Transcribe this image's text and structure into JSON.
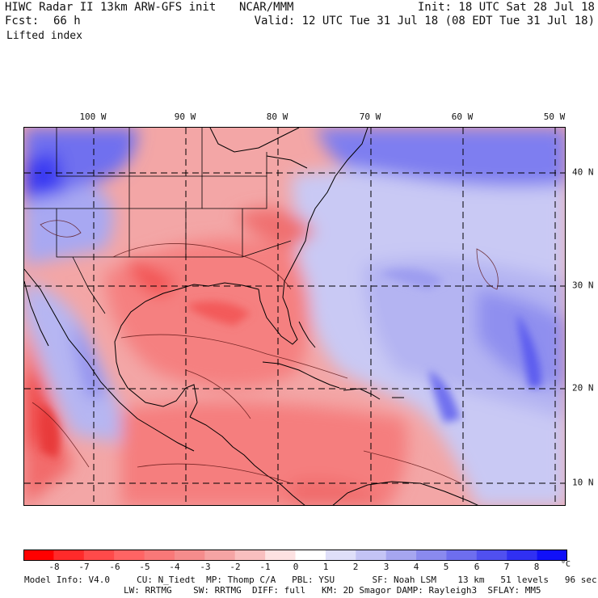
{
  "header": {
    "title": "HIWC Radar II 13km ARW-GFS init",
    "center": "NCAR/MMM",
    "init": "Init: 18 UTC Sat 28 Jul 18",
    "fcst_label": "Fcst:",
    "fcst_value": "66 h",
    "valid": "Valid: 12 UTC Tue 31 Jul 18 (08 EDT Tue 31 Jul 18)",
    "field": "Lifted index"
  },
  "longitude_labels": [
    "100 W",
    "90 W",
    "80 W",
    "70 W",
    "60 W",
    "50 W"
  ],
  "latitude_labels": [
    "40 N",
    "30 N",
    "20 N",
    "10 N"
  ],
  "colorbar": {
    "ticks": [
      "-8",
      "-7",
      "-6",
      "-5",
      "-4",
      "-3",
      "-2",
      "-1",
      "0",
      "1",
      "2",
      "3",
      "4",
      "5",
      "6",
      "7",
      "8"
    ],
    "unit": "°C",
    "colors": [
      "#ff0000",
      "#ff2a2a",
      "#ff4a4a",
      "#ff6464",
      "#f97878",
      "#f58c8c",
      "#f5a4a4",
      "#f9bfbf",
      "#fde2e2",
      "#ffffff",
      "#dfdff9",
      "#c4c4f5",
      "#a6a6f0",
      "#8a8aef",
      "#6e6eef",
      "#5050f0",
      "#3030f2",
      "#1010f8"
    ]
  },
  "footer": {
    "line1": "Model Info: V4.0     CU: N_Tiedt  MP: Thomp C/A   PBL: YSU       SF: Noah LSM    13 km   51 levels   96 sec",
    "line2": "LW: RRTMG    SW: RRTMG  DIFF: full   KM: 2D Smagor DAMP: Rayleigh3  SFLAY: MM5"
  }
}
